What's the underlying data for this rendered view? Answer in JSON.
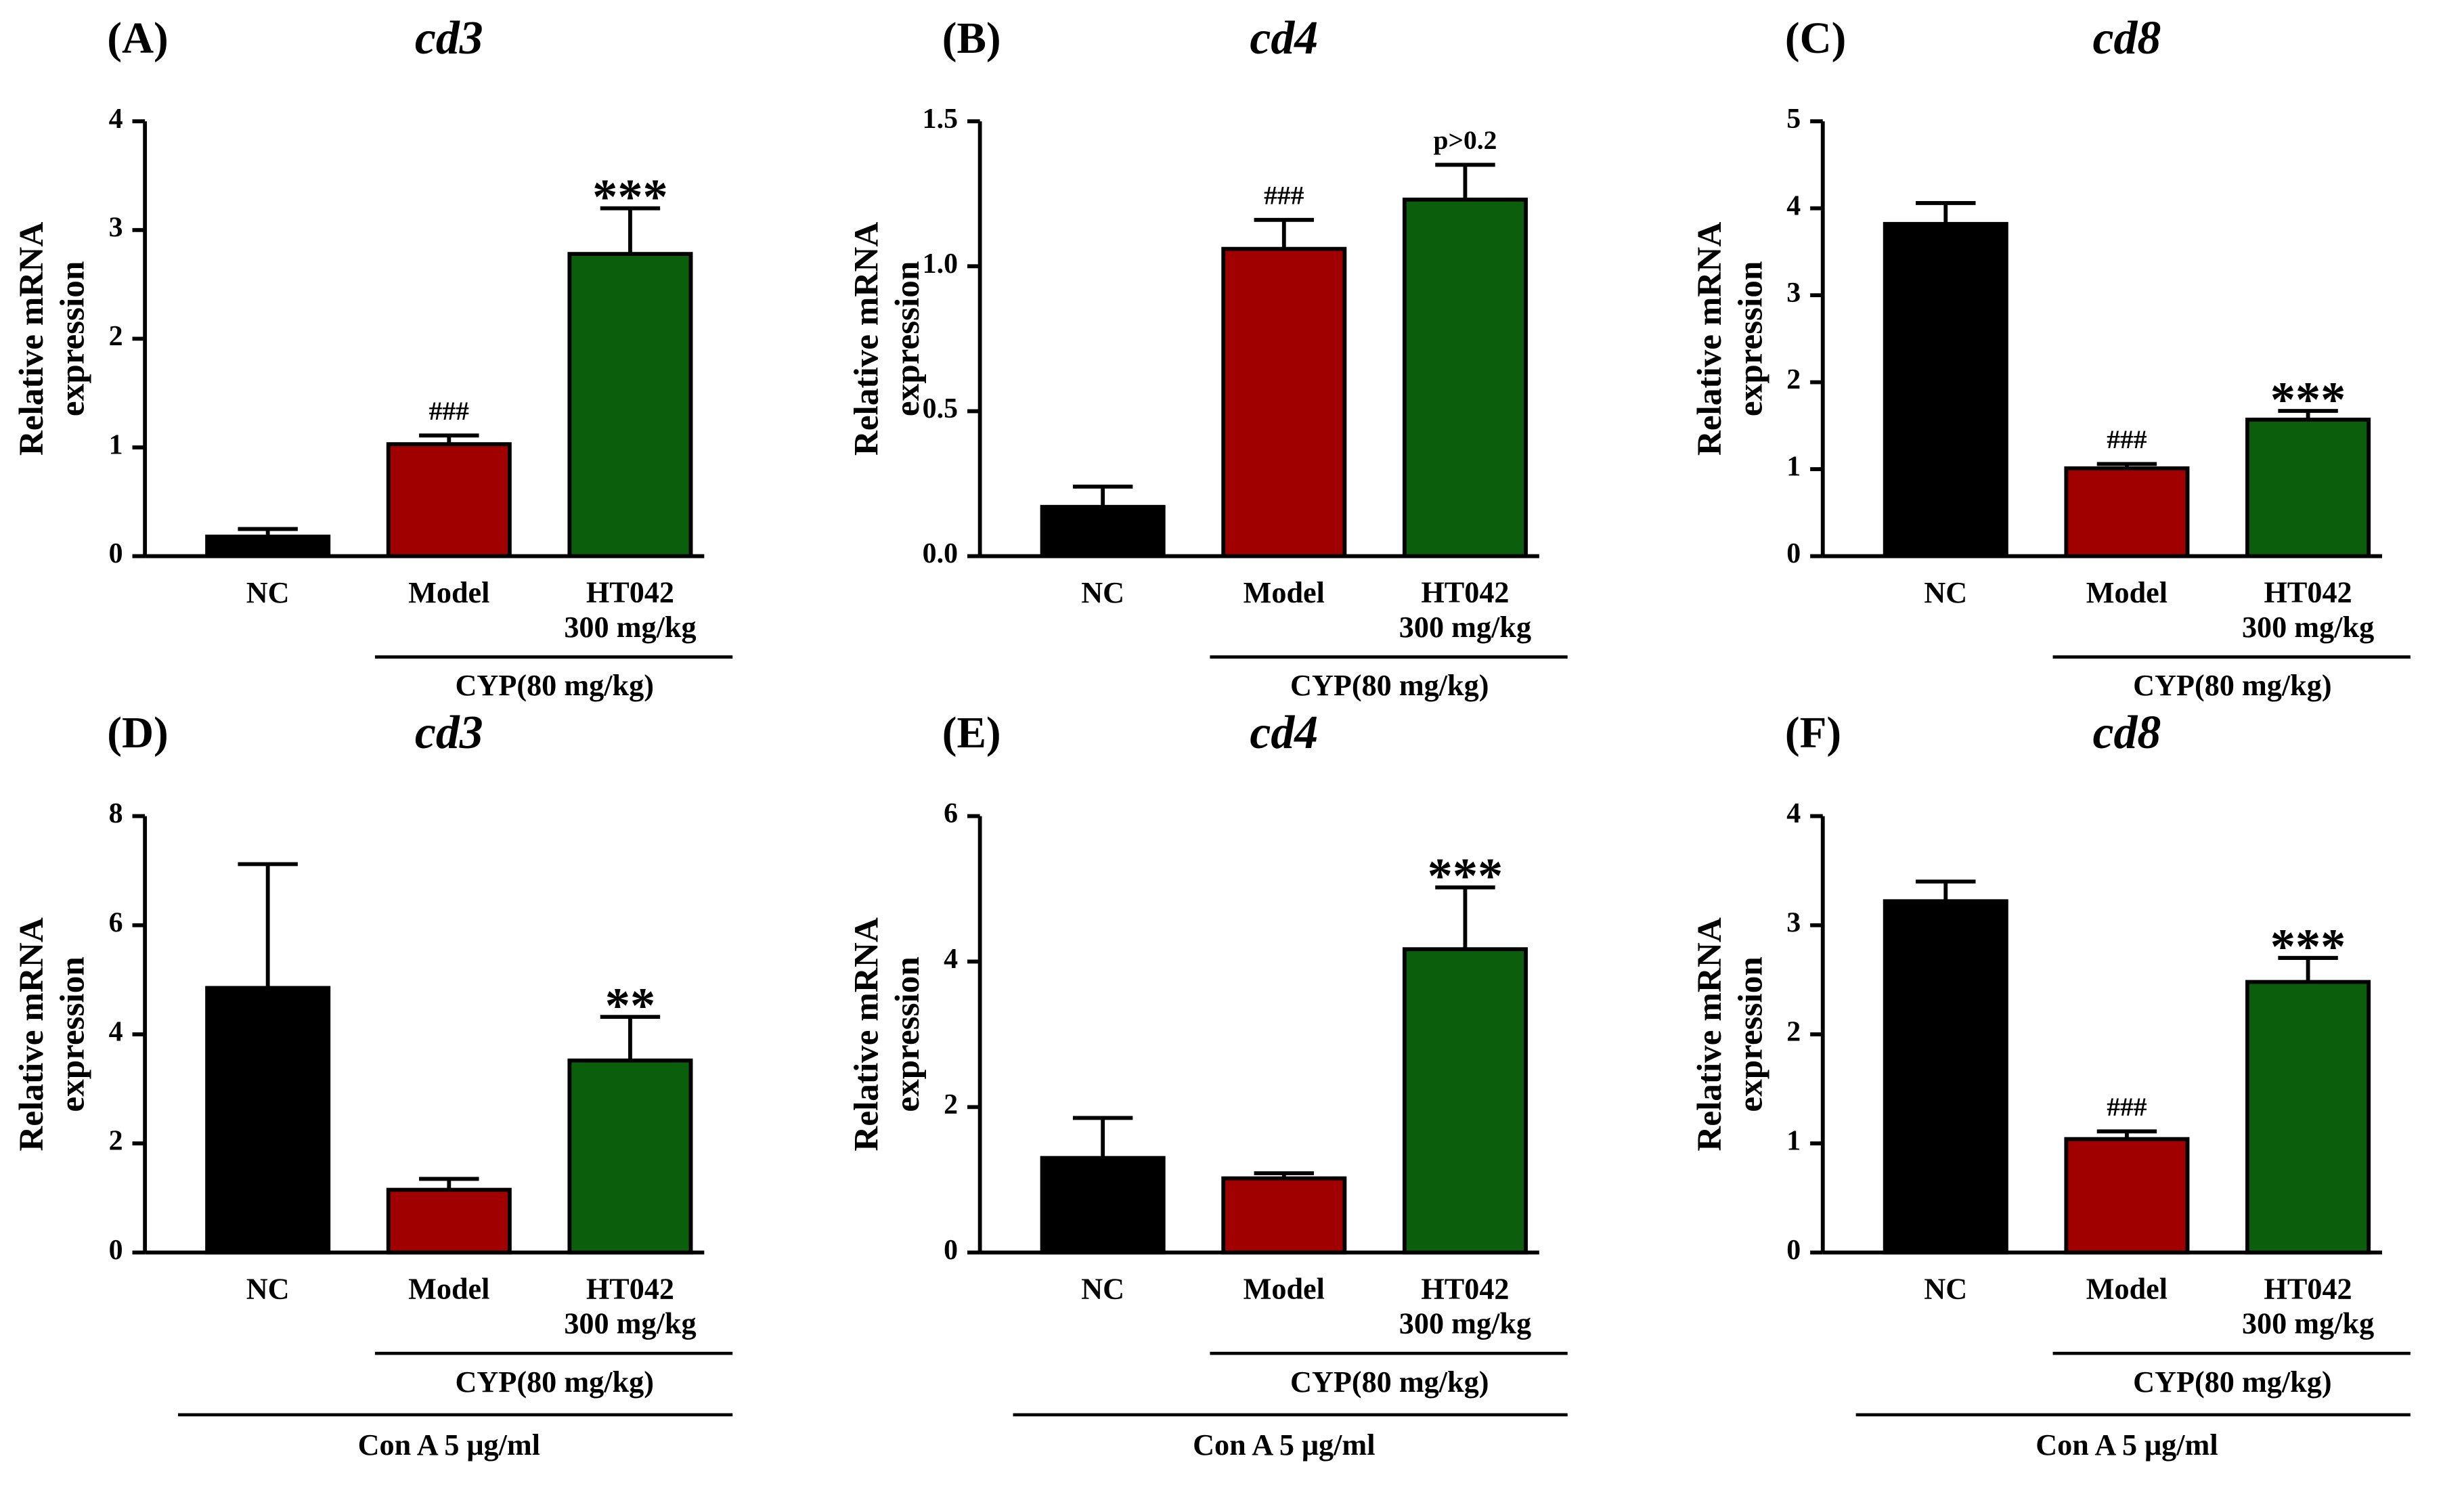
{
  "chart_data": [
    {
      "type": "bar",
      "panel": "(A)",
      "title": "cd3",
      "ylabel": "Relative mRNA expression",
      "categories": [
        "NC",
        "Model",
        "HT042 300 mg/kg"
      ],
      "values": [
        0.18,
        1.03,
        2.78
      ],
      "errors": [
        0.07,
        0.08,
        0.42
      ],
      "colors": [
        "#000000",
        "#a00000",
        "#0b5e0b"
      ],
      "annotations": [
        null,
        "###",
        "***"
      ],
      "group_label": "CYP(80 mg/kg)",
      "ylim": [
        0,
        4
      ],
      "yticks": [
        0,
        1,
        2,
        3,
        4
      ]
    },
    {
      "type": "bar",
      "panel": "(B)",
      "title": "cd4",
      "ylabel": "Relative mRNA expression",
      "categories": [
        "NC",
        "Model",
        "HT042 300 mg/kg"
      ],
      "values": [
        0.17,
        1.06,
        1.23
      ],
      "errors": [
        0.07,
        0.1,
        0.12
      ],
      "colors": [
        "#000000",
        "#a00000",
        "#0b5e0b"
      ],
      "annotations": [
        null,
        "###",
        "p>0.2"
      ],
      "group_label": "CYP(80 mg/kg)",
      "ylim": [
        0,
        1.5
      ],
      "yticks": [
        {
          "value": 0,
          "label": "0.0"
        },
        0.5,
        {
          "value": 1,
          "label": "1.0"
        },
        1.5
      ]
    },
    {
      "type": "bar",
      "panel": "(C)",
      "title": "cd8",
      "ylabel": "Relative mRNA expression",
      "categories": [
        "NC",
        "Model",
        "HT042 300 mg/kg"
      ],
      "values": [
        3.82,
        1.01,
        1.57
      ],
      "errors": [
        0.24,
        0.05,
        0.1
      ],
      "colors": [
        "#000000",
        "#a00000",
        "#0b5e0b"
      ],
      "annotations": [
        null,
        "###",
        "***"
      ],
      "group_label": "CYP(80 mg/kg)",
      "ylim": [
        0,
        5
      ],
      "yticks": [
        0,
        1,
        2,
        3,
        4,
        5
      ]
    },
    {
      "type": "bar",
      "panel": "(D)",
      "title": "cd3",
      "ylabel": "Relative mRNA expression",
      "categories": [
        "NC",
        "Model",
        "HT042 300 mg/kg"
      ],
      "values": [
        4.85,
        1.15,
        3.52
      ],
      "errors": [
        2.27,
        0.2,
        0.8
      ],
      "colors": [
        "#000000",
        "#a00000",
        "#0b5e0b"
      ],
      "annotations": [
        null,
        null,
        "**"
      ],
      "group_label": "CYP(80 mg/kg)",
      "outer_label": "Con A 5 μg/ml",
      "ylim": [
        0,
        8
      ],
      "yticks": [
        0,
        2,
        4,
        6,
        8
      ]
    },
    {
      "type": "bar",
      "panel": "(E)",
      "title": "cd4",
      "ylabel": "Relative mRNA expression",
      "categories": [
        "NC",
        "Model",
        "HT042 300 mg/kg"
      ],
      "values": [
        1.3,
        1.02,
        4.17
      ],
      "errors": [
        0.55,
        0.07,
        0.85
      ],
      "colors": [
        "#000000",
        "#a00000",
        "#0b5e0b"
      ],
      "annotations": [
        null,
        null,
        "***"
      ],
      "group_label": "CYP(80 mg/kg)",
      "outer_label": "Con A 5 μg/ml",
      "ylim": [
        0,
        6
      ],
      "yticks": [
        0,
        2,
        4,
        6
      ]
    },
    {
      "type": "bar",
      "panel": "(F)",
      "title": "cd8",
      "ylabel": "Relative mRNA expression",
      "categories": [
        "NC",
        "Model",
        "HT042 300 mg/kg"
      ],
      "values": [
        3.22,
        1.04,
        2.48
      ],
      "errors": [
        0.18,
        0.07,
        0.22
      ],
      "colors": [
        "#000000",
        "#a00000",
        "#0b5e0b"
      ],
      "annotations": [
        null,
        "###",
        "***"
      ],
      "group_label": "CYP(80 mg/kg)",
      "outer_label": "Con A 5 μg/ml",
      "ylim": [
        0,
        4
      ],
      "yticks": [
        0,
        1,
        2,
        3,
        4
      ]
    }
  ]
}
